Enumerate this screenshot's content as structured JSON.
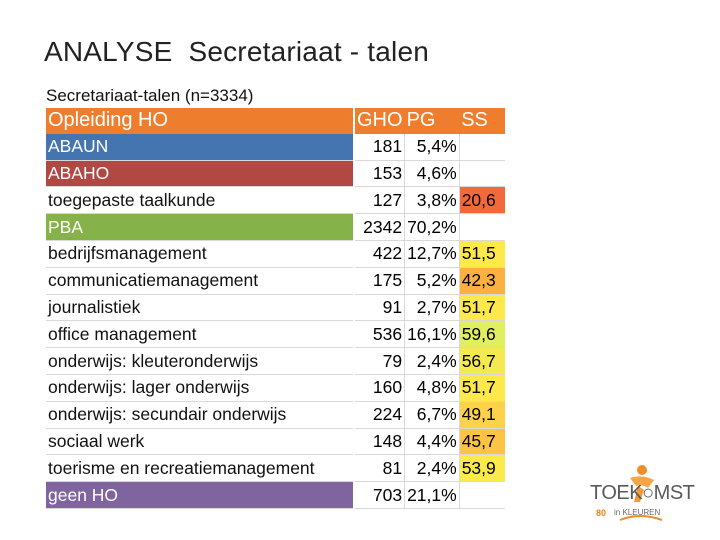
{
  "slide": {
    "title": "ANALYSE  Secretariaat - talen"
  },
  "table": {
    "caption": "Secretariaat-talen (n=3334)",
    "headers": {
      "opleiding": "Opleiding HO",
      "gho": "GHO",
      "pg": "PG",
      "ss": "SS"
    },
    "colors": {
      "header": "#ee7e2d",
      "abaun": "#4575b0",
      "abaho": "#b04944",
      "pba": "#86b24a",
      "geen_ho": "#8064a0"
    },
    "rows": [
      {
        "name": "ABAUN",
        "gho": "181",
        "pg": "5,4%",
        "ss": "",
        "fill": "#4575b0",
        "ss_color": ""
      },
      {
        "name": "ABAHO",
        "gho": "153",
        "pg": "4,6%",
        "ss": "",
        "fill": "#b04944",
        "ss_color": ""
      },
      {
        "name": "toegepaste taalkunde",
        "gho": "127",
        "pg": "3,8%",
        "ss": "20,6",
        "fill": "",
        "ss_color": "#f26a3a"
      },
      {
        "name": "PBA",
        "gho": "2342",
        "pg": "70,2%",
        "ss": "",
        "fill": "#86b24a",
        "ss_color": ""
      },
      {
        "name": "bedrijfsmanagement",
        "gho": "422",
        "pg": "12,7%",
        "ss": "51,5",
        "fill": "",
        "ss_color": "#fde94a"
      },
      {
        "name": "communicatiemanagement",
        "gho": "175",
        "pg": "5,2%",
        "ss": "42,3",
        "fill": "",
        "ss_color": "#fbb040"
      },
      {
        "name": "journalistiek",
        "gho": "91",
        "pg": "2,7%",
        "ss": "51,7",
        "fill": "",
        "ss_color": "#fde94a"
      },
      {
        "name": "office management",
        "gho": "536",
        "pg": "16,1%",
        "ss": "59,6",
        "fill": "",
        "ss_color": "#e1ee60"
      },
      {
        "name": "onderwijs: kleuteronderwijs",
        "gho": "79",
        "pg": "2,4%",
        "ss": "56,7",
        "fill": "",
        "ss_color": "#f4ea50"
      },
      {
        "name": "onderwijs: lager onderwijs",
        "gho": "160",
        "pg": "4,8%",
        "ss": "51,7",
        "fill": "",
        "ss_color": "#fde94a"
      },
      {
        "name": "onderwijs: secundair onderwijs",
        "gho": "224",
        "pg": "6,7%",
        "ss": "49,1",
        "fill": "",
        "ss_color": "#fdd24a"
      },
      {
        "name": "sociaal werk",
        "gho": "148",
        "pg": "4,4%",
        "ss": "45,7",
        "fill": "",
        "ss_color": "#fcc444"
      },
      {
        "name": "toerisme en recreatiemanagement",
        "gho": "81",
        "pg": "2,4%",
        "ss": "53,9",
        "fill": "",
        "ss_color": "#fbea4c"
      },
      {
        "name": "geen HO",
        "gho": "703",
        "pg": "21,1%",
        "ss": "",
        "fill": "#8064a0",
        "ss_color": ""
      }
    ]
  },
  "logo": {
    "text": "TOEK○MST",
    "sub": "in KLEUREN",
    "num": "80"
  }
}
